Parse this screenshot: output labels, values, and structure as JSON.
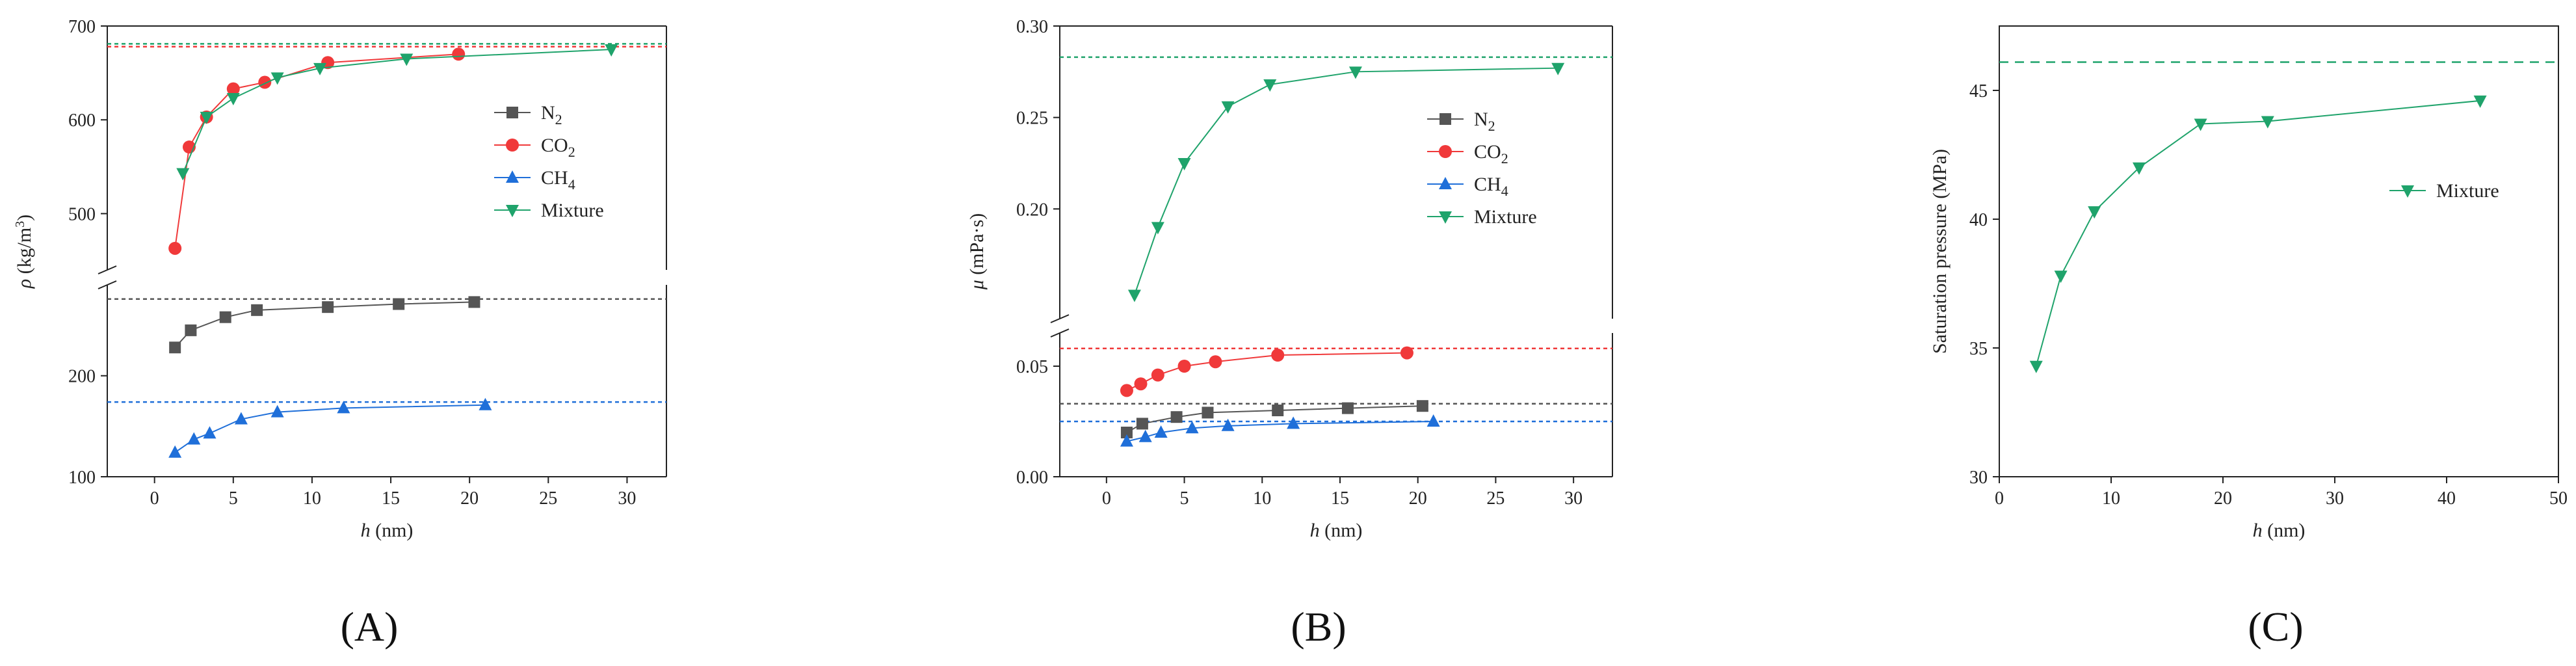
{
  "colors": {
    "N2": "#555555",
    "CO2": "#f0393a",
    "CH4": "#1f6fd9",
    "Mixture": "#1fa36b",
    "axis": "#222222"
  },
  "chart_data": [
    {
      "panel": "A",
      "type": "line",
      "label": "(A)",
      "xlabel_var": "h",
      "xlabel_unit": " (nm)",
      "ylabel": "ρ (kg/m³)",
      "ylabel_var": "ρ",
      "ylabel_unit_pre": " (kg/m",
      "ylabel_unit_sup": "3",
      "ylabel_unit_post": ")",
      "xlim": [
        -3,
        32.5
      ],
      "xticks": [
        0,
        5,
        10,
        15,
        20,
        25,
        30
      ],
      "y_break": true,
      "ylim_upper": [
        440,
        700
      ],
      "yticks_upper": [
        500,
        600,
        700
      ],
      "ylim_lower": [
        100,
        290
      ],
      "yticks_lower": [
        100,
        200
      ],
      "legend": [
        "N₂",
        "CO₂",
        "CH₄",
        "Mixture"
      ],
      "legend_sub": [
        [
          "N",
          "2"
        ],
        [
          "CO",
          "2"
        ],
        [
          "CH",
          "4"
        ],
        [
          "Mixture",
          ""
        ]
      ],
      "series": [
        {
          "name": "N2",
          "x": [
            1.3,
            2.3,
            4.5,
            6.5,
            11,
            15.5,
            20.3
          ],
          "y": [
            228,
            245,
            258,
            265,
            268,
            271,
            273
          ]
        },
        {
          "name": "CO2",
          "x": [
            1.3,
            2.2,
            3.3,
            5.0,
            7.0,
            11,
            19.3
          ],
          "y": [
            463,
            571,
            603,
            633,
            640,
            661,
            670
          ]
        },
        {
          "name": "CH4",
          "x": [
            1.3,
            2.5,
            3.5,
            5.5,
            7.8,
            12,
            21
          ],
          "y": [
            124,
            137,
            143,
            157,
            164,
            168,
            171
          ]
        },
        {
          "name": "Mixture",
          "x": [
            1.8,
            3.3,
            5.0,
            7.8,
            10.5,
            16,
            29
          ],
          "y": [
            543,
            603,
            623,
            645,
            655,
            665,
            675
          ]
        }
      ],
      "reference_lines": [
        {
          "series": "N2",
          "y": 276
        },
        {
          "series": "CO2",
          "y": 678
        },
        {
          "series": "CH4",
          "y": 174
        },
        {
          "series": "Mixture",
          "y": 681
        }
      ]
    },
    {
      "panel": "B",
      "type": "line",
      "label": "(B)",
      "xlabel_var": "h",
      "xlabel_unit": " (nm)",
      "ylabel": "μ (mPa·s)",
      "ylabel_var": "μ",
      "ylabel_unit_pre": " (mPa·s)",
      "ylabel_unit_sup": "",
      "ylabel_unit_post": "",
      "xlim": [
        -3,
        32.5
      ],
      "xticks": [
        0,
        5,
        10,
        15,
        20,
        25,
        30
      ],
      "y_break": true,
      "ylim_upper": [
        0.14,
        0.3
      ],
      "yticks_upper": [
        0.2,
        0.25,
        0.3
      ],
      "yticks_upper_labels": [
        "0.20",
        "0.25",
        "0.30"
      ],
      "ylim_lower": [
        0.0,
        0.065
      ],
      "yticks_lower": [
        0.0,
        0.05
      ],
      "yticks_lower_labels": [
        "0.00",
        "0.05"
      ],
      "legend": [
        "N₂",
        "CO₂",
        "CH₄",
        "Mixture"
      ],
      "legend_sub": [
        [
          "N",
          "2"
        ],
        [
          "CO",
          "2"
        ],
        [
          "CH",
          "4"
        ],
        [
          "Mixture",
          ""
        ]
      ],
      "series": [
        {
          "name": "N2",
          "x": [
            1.3,
            2.3,
            4.5,
            6.5,
            11,
            15.5,
            20.3
          ],
          "y": [
            0.02,
            0.024,
            0.027,
            0.029,
            0.03,
            0.031,
            0.032
          ]
        },
        {
          "name": "CO2",
          "x": [
            1.3,
            2.2,
            3.3,
            5.0,
            7.0,
            11,
            19.3
          ],
          "y": [
            0.039,
            0.042,
            0.046,
            0.05,
            0.052,
            0.055,
            0.056
          ]
        },
        {
          "name": "CH4",
          "x": [
            1.3,
            2.5,
            3.5,
            5.5,
            7.8,
            12,
            21
          ],
          "y": [
            0.016,
            0.018,
            0.02,
            0.022,
            0.023,
            0.024,
            0.025
          ]
        },
        {
          "name": "Mixture",
          "x": [
            1.8,
            3.3,
            5.0,
            7.8,
            10.5,
            16,
            29
          ],
          "y": [
            0.153,
            0.19,
            0.225,
            0.256,
            0.268,
            0.275,
            0.277
          ]
        }
      ],
      "reference_lines": [
        {
          "series": "N2",
          "y": 0.033
        },
        {
          "series": "CO2",
          "y": 0.058
        },
        {
          "series": "CH4",
          "y": 0.025
        },
        {
          "series": "Mixture",
          "y": 0.283
        }
      ]
    },
    {
      "panel": "C",
      "type": "line",
      "label": "(C)",
      "xlabel_var": "h",
      "xlabel_unit": " (nm)",
      "ylabel": "Saturation pressure (MPa)",
      "xlim": [
        0,
        50
      ],
      "xticks": [
        0,
        10,
        20,
        30,
        40,
        50
      ],
      "ylim": [
        30,
        47.5
      ],
      "yticks": [
        30,
        35,
        40,
        45
      ],
      "legend": [
        "Mixture"
      ],
      "series": [
        {
          "name": "Mixture",
          "x": [
            3.3,
            5.5,
            8.5,
            12.5,
            18,
            24,
            43
          ],
          "y": [
            34.3,
            37.8,
            40.3,
            42.0,
            43.7,
            43.8,
            44.6
          ]
        }
      ],
      "reference_lines": [
        {
          "series": "Mixture",
          "y": 46.1
        }
      ]
    }
  ]
}
